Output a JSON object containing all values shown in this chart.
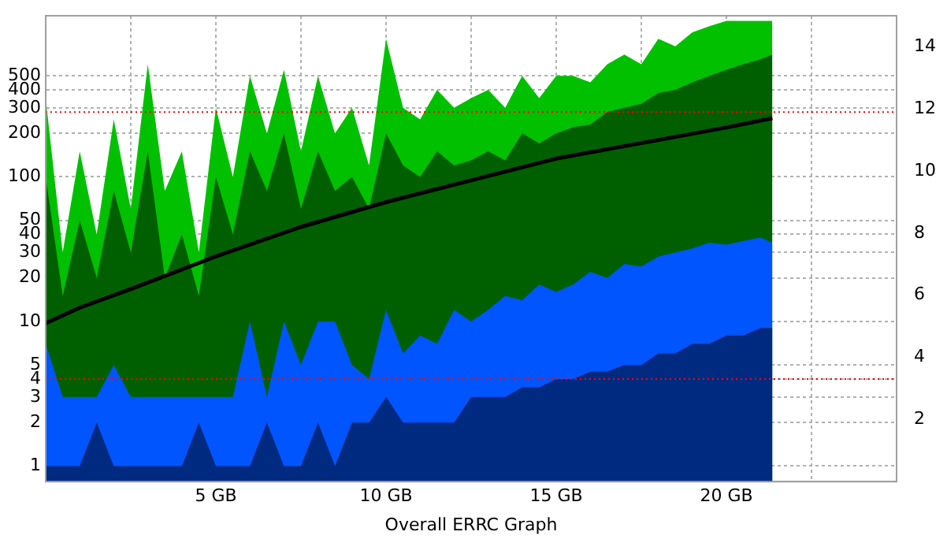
{
  "chart_data": {
    "type": "area",
    "xlabel": "Overall ERRC Graph",
    "x": [
      0,
      0.5,
      1,
      1.5,
      2,
      2.5,
      3,
      3.5,
      4,
      4.5,
      5,
      5.5,
      6,
      6.5,
      7,
      7.5,
      8,
      8.5,
      9,
      9.5,
      10,
      10.5,
      11,
      11.5,
      12,
      12.5,
      13,
      13.5,
      14,
      14.5,
      15,
      15.5,
      16,
      16.5,
      17,
      17.5,
      18,
      18.5,
      19,
      19.5,
      20,
      20.5,
      21,
      21.35
    ],
    "series": [
      {
        "color": "#00c000",
        "values": [
          350,
          30,
          150,
          40,
          250,
          60,
          600,
          80,
          150,
          30,
          300,
          100,
          500,
          200,
          550,
          150,
          500,
          200,
          300,
          120,
          900,
          300,
          250,
          400,
          300,
          350,
          400,
          300,
          500,
          350,
          500,
          500,
          450,
          600,
          700,
          600,
          900,
          800,
          1000,
          1100,
          1200,
          1200,
          1200,
          1200
        ]
      },
      {
        "color": "#006000",
        "values": [
          100,
          15,
          50,
          20,
          80,
          30,
          150,
          20,
          40,
          15,
          100,
          40,
          150,
          80,
          200,
          60,
          150,
          80,
          100,
          60,
          200,
          120,
          100,
          150,
          120,
          130,
          150,
          130,
          200,
          170,
          200,
          220,
          230,
          280,
          300,
          320,
          380,
          400,
          450,
          500,
          550,
          600,
          650,
          700
        ]
      },
      {
        "color": "#0055ff",
        "values": [
          7,
          3,
          3,
          3,
          5,
          3,
          3,
          3,
          3,
          3,
          3,
          3,
          10,
          3,
          10,
          5,
          10,
          10,
          5,
          4,
          12,
          6,
          8,
          7,
          12,
          10,
          12,
          15,
          14,
          18,
          16,
          18,
          22,
          20,
          25,
          24,
          28,
          30,
          32,
          35,
          34,
          36,
          38,
          35
        ]
      },
      {
        "color": "#002a80",
        "values": [
          1,
          1,
          1,
          2,
          1,
          1,
          1,
          1,
          1,
          2,
          1,
          1,
          1,
          2,
          1,
          1,
          2,
          1,
          2,
          2,
          3,
          2,
          2,
          2,
          2,
          3,
          3,
          3,
          3.5,
          3.5,
          4,
          4,
          4.5,
          4.5,
          5,
          5,
          6,
          6,
          7,
          7,
          8,
          8,
          9,
          9
        ]
      },
      {
        "type": "line",
        "axis": "y2",
        "color": "#000000",
        "x": [
          0,
          1,
          2.5,
          5,
          7.5,
          10,
          12.5,
          15,
          17.5,
          20,
          21.35
        ],
        "values": [
          5.1,
          5.6,
          6.2,
          7.25,
          8.2,
          9.0,
          9.7,
          10.4,
          10.9,
          11.4,
          11.7
        ]
      }
    ],
    "log": "y",
    "xlim": [
      0,
      25
    ],
    "xticks": [
      {
        "value": 2.5,
        "label": null
      },
      {
        "value": 5,
        "label": "5 GB"
      },
      {
        "value": 7.5,
        "label": null
      },
      {
        "value": 10,
        "label": "10 GB"
      },
      {
        "value": 12.5,
        "label": null
      },
      {
        "value": 15,
        "label": "15 GB"
      },
      {
        "value": 17.5,
        "label": null
      },
      {
        "value": 20,
        "label": "20 GB"
      },
      {
        "value": 22.5,
        "label": null
      }
    ],
    "ylim": [
      0.78,
      1300
    ],
    "yticks": [
      1,
      2,
      3,
      4,
      5,
      10,
      20,
      30,
      40,
      50,
      100,
      200,
      300,
      400,
      500
    ],
    "y2lim": [
      0,
      15
    ],
    "y2ticks": [
      2,
      4,
      6,
      8,
      10,
      12,
      14
    ],
    "ref_lines": [
      {
        "axis": "y",
        "value": 280,
        "color": "#ff0000",
        "line_style": "dotted"
      },
      {
        "axis": "y",
        "value": 4,
        "color": "#ff0000",
        "line_style": "dotted"
      }
    ],
    "grid": true,
    "legend": false
  }
}
